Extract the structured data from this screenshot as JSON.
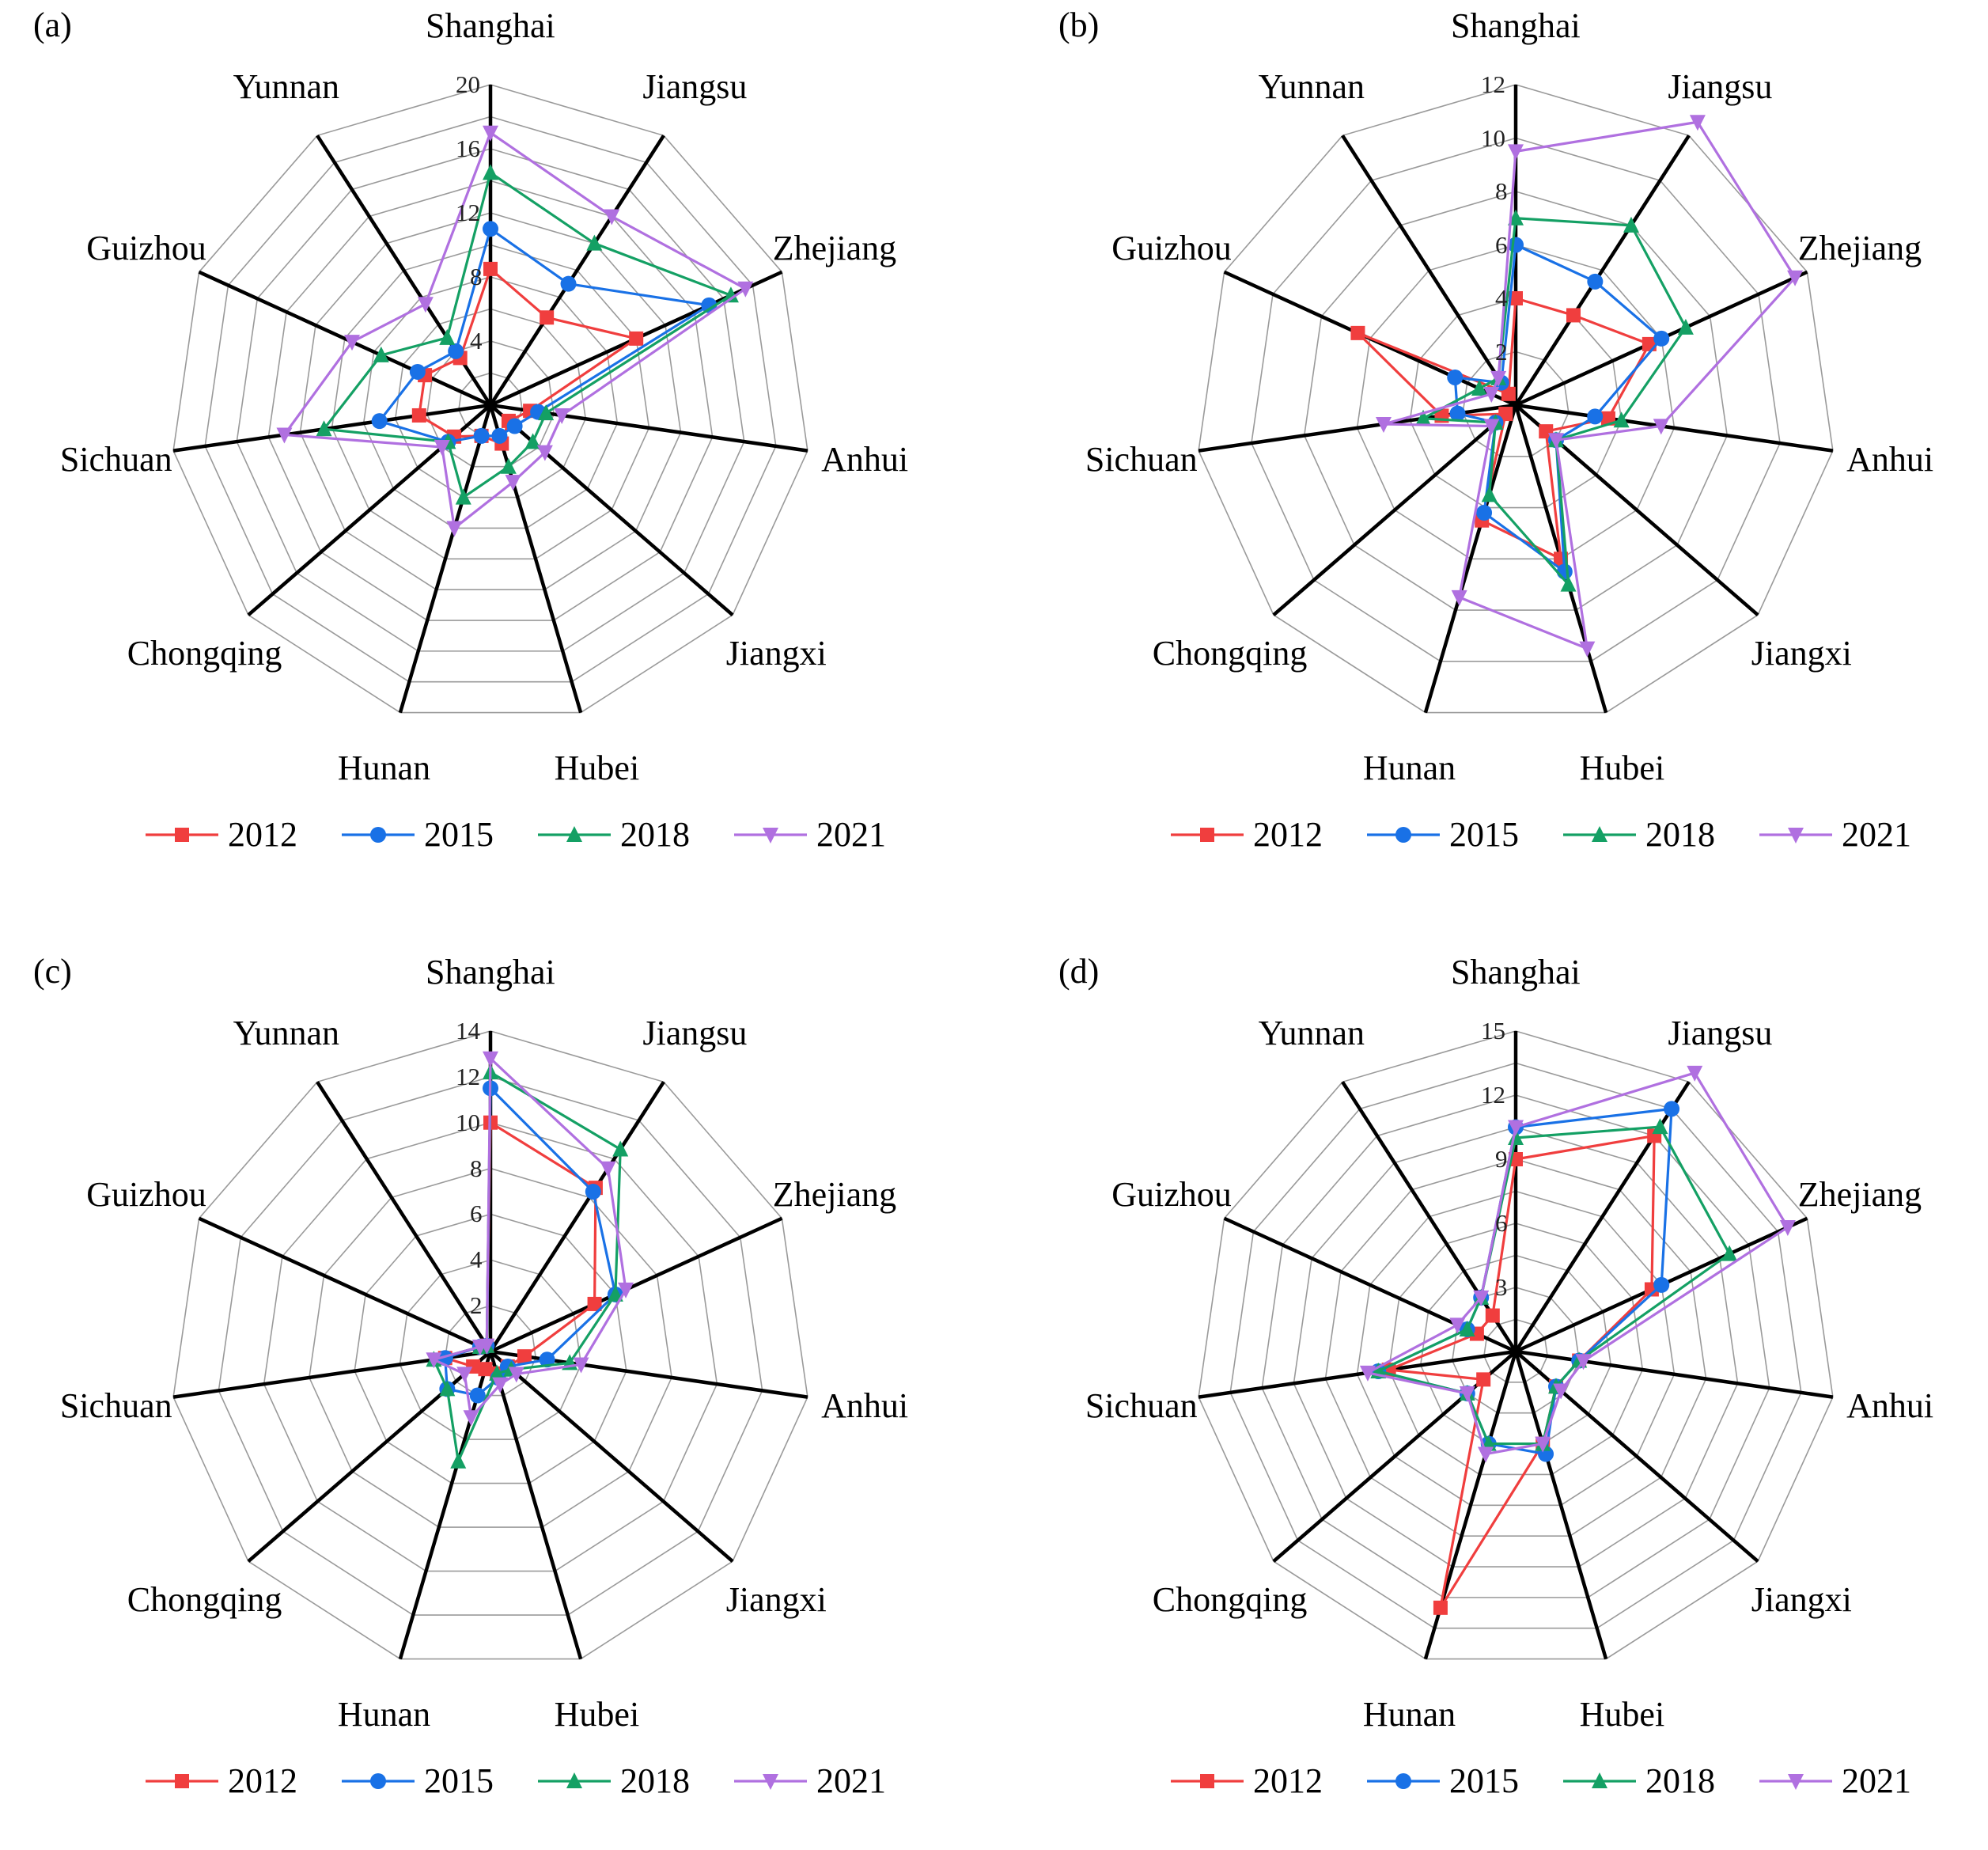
{
  "axes": [
    "Shanghai",
    "Jiangsu",
    "Zhejiang",
    "Anhui",
    "Jiangxi",
    "Hubei",
    "Hunan",
    "Chongqing",
    "Sichuan",
    "Guizhou",
    "Yunnan"
  ],
  "legend": [
    {
      "label": "2012",
      "color": "#f03e3e",
      "marker": "square"
    },
    {
      "label": "2015",
      "color": "#1971e6",
      "marker": "circle"
    },
    {
      "label": "2018",
      "color": "#14a064",
      "marker": "triangle-up"
    },
    {
      "label": "2021",
      "color": "#b070e0",
      "marker": "triangle-down"
    }
  ],
  "chart_data": [
    {
      "type": "radar",
      "label": "(a)",
      "ticks": [
        "4",
        "8",
        "12",
        "16",
        "20"
      ],
      "rmax": 20,
      "grid_rings": 10,
      "categories": [
        "Shanghai",
        "Jiangsu",
        "Zhejiang",
        "Anhui",
        "Jiangxi",
        "Hubei",
        "Hunan",
        "Chongqing",
        "Sichuan",
        "Guizhou",
        "Yunnan"
      ],
      "series": [
        {
          "name": "2012",
          "values": [
            8.5,
            6.5,
            10,
            2.5,
            1.5,
            2.5,
            2,
            3,
            4.5,
            4.5,
            3.5
          ]
        },
        {
          "name": "2015",
          "values": [
            11,
            9,
            15,
            3,
            2,
            2,
            2,
            3.5,
            7,
            5,
            4
          ]
        },
        {
          "name": "2018",
          "values": [
            14.5,
            12,
            16.5,
            3.5,
            3.5,
            4,
            6,
            3.5,
            10.5,
            7.5,
            5
          ]
        },
        {
          "name": "2021",
          "values": [
            17,
            14,
            17.5,
            4.5,
            4.5,
            5,
            8,
            4,
            13,
            9.5,
            7.5
          ]
        }
      ]
    },
    {
      "type": "radar",
      "label": "(b)",
      "ticks": [
        "2",
        "4",
        "6",
        "8",
        "10",
        "12"
      ],
      "rmax": 12,
      "grid_rings": 6,
      "categories": [
        "Shanghai",
        "Jiangsu",
        "Zhejiang",
        "Anhui",
        "Jiangxi",
        "Hubei",
        "Hunan",
        "Chongqing",
        "Sichuan",
        "Guizhou",
        "Yunnan"
      ],
      "series": [
        {
          "name": "2012",
          "values": [
            4,
            4,
            5.5,
            3.5,
            1.5,
            6,
            4.5,
            0.5,
            2.8,
            6.5,
            0.5
          ]
        },
        {
          "name": "2015",
          "values": [
            6,
            5.5,
            6,
            3,
            2,
            6.5,
            4.2,
            1,
            2.2,
            2.5,
            1
          ]
        },
        {
          "name": "2018",
          "values": [
            7,
            8,
            7,
            4,
            2,
            7,
            3.5,
            1,
            3.5,
            1.5,
            1.2
          ]
        },
        {
          "name": "2021",
          "values": [
            9.5,
            13,
            11.5,
            5.5,
            2,
            9.5,
            7.5,
            1.2,
            5,
            1,
            1.2
          ]
        }
      ]
    },
    {
      "type": "radar",
      "label": "(c)",
      "ticks": [
        "2",
        "4",
        "6",
        "8",
        "10",
        "12",
        "14"
      ],
      "rmax": 14,
      "grid_rings": 7,
      "categories": [
        "Shanghai",
        "Jiangsu",
        "Zhejiang",
        "Anhui",
        "Jiangxi",
        "Hubei",
        "Hunan",
        "Chongqing",
        "Sichuan",
        "Guizhou",
        "Yunnan"
      ],
      "series": [
        {
          "name": "2012",
          "values": [
            10,
            8.5,
            5,
            1.5,
            1,
            1,
            0.8,
            1,
            2,
            0.5,
            0.3
          ]
        },
        {
          "name": "2015",
          "values": [
            11.5,
            8.3,
            6,
            2.5,
            1,
            1.2,
            2,
            2.5,
            2,
            0.5,
            0.3
          ]
        },
        {
          "name": "2018",
          "values": [
            12.2,
            10.5,
            6,
            3.5,
            1.2,
            1,
            5,
            2.5,
            2.5,
            0.5,
            0.3
          ]
        },
        {
          "name": "2021",
          "values": [
            12.8,
            9.5,
            6.5,
            4,
            1.5,
            1.5,
            3,
            1.5,
            2.5,
            0.5,
            0.3
          ]
        }
      ]
    },
    {
      "type": "radar",
      "label": "(d)",
      "ticks": [
        "3",
        "6",
        "9",
        "12",
        "15"
      ],
      "rmax": 15,
      "grid_rings": 10,
      "categories": [
        "Shanghai",
        "Jiangsu",
        "Zhejiang",
        "Anhui",
        "Jiangxi",
        "Hubei",
        "Hunan",
        "Chongqing",
        "Sichuan",
        "Guizhou",
        "Yunnan"
      ],
      "series": [
        {
          "name": "2012",
          "values": [
            9,
            12,
            7,
            3,
            2.5,
            4.5,
            12.5,
            2,
            6,
            2,
            2
          ]
        },
        {
          "name": "2015",
          "values": [
            10.5,
            13.5,
            7.5,
            3,
            2.5,
            5,
            4.5,
            3,
            6.5,
            2.5,
            3
          ]
        },
        {
          "name": "2018",
          "values": [
            10,
            12.5,
            11,
            3,
            2.5,
            4.5,
            4.5,
            3,
            6.5,
            2.5,
            3
          ]
        },
        {
          "name": "2021",
          "values": [
            10.5,
            15.5,
            14,
            3.2,
            2.8,
            4.5,
            5,
            3,
            7,
            3,
            3
          ]
        }
      ]
    }
  ]
}
